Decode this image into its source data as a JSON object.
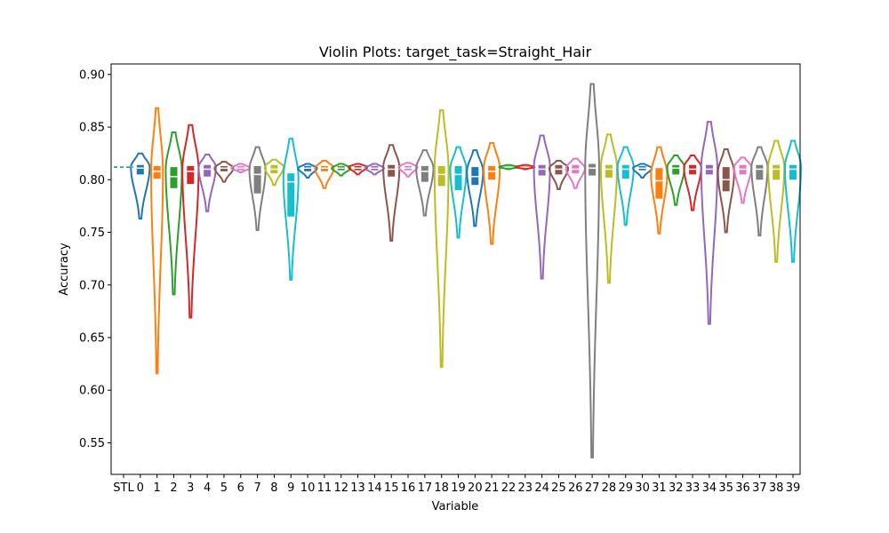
{
  "chart_data": {
    "type": "violin",
    "title": "Violin Plots: target_task=Straight_Hair",
    "xlabel": "Variable",
    "ylabel": "Accuracy",
    "ylim": [
      0.52,
      0.91
    ],
    "yticks": [
      "0.55",
      "0.60",
      "0.65",
      "0.70",
      "0.75",
      "0.80",
      "0.85",
      "0.90"
    ],
    "categories": [
      "STL",
      "0",
      "1",
      "2",
      "3",
      "4",
      "5",
      "6",
      "7",
      "8",
      "9",
      "10",
      "11",
      "12",
      "13",
      "14",
      "15",
      "16",
      "17",
      "18",
      "19",
      "20",
      "21",
      "22",
      "23",
      "24",
      "25",
      "26",
      "27",
      "28",
      "29",
      "30",
      "31",
      "32",
      "33",
      "34",
      "35",
      "36",
      "37",
      "38",
      "39"
    ],
    "stl_value": 0.812,
    "palette": [
      "#1f77b4",
      "#ff7f0e",
      "#2ca02c",
      "#d62728",
      "#9467bd",
      "#8c564b",
      "#e377c2",
      "#7f7f7f",
      "#bcbd22",
      "#17becf"
    ],
    "series": [
      {
        "name": "0",
        "min": 0.763,
        "max": 0.825,
        "q1": 0.805,
        "median": 0.811,
        "q3": 0.814,
        "mode": 0.812,
        "width": 0.35
      },
      {
        "name": "1",
        "min": 0.616,
        "max": 0.868,
        "q1": 0.801,
        "median": 0.808,
        "q3": 0.813,
        "mode": 0.808,
        "width": 0.22
      },
      {
        "name": "2",
        "min": 0.691,
        "max": 0.845,
        "q1": 0.792,
        "median": 0.803,
        "q3": 0.812,
        "mode": 0.81,
        "width": 0.3
      },
      {
        "name": "3",
        "min": 0.669,
        "max": 0.852,
        "q1": 0.796,
        "median": 0.808,
        "q3": 0.813,
        "mode": 0.81,
        "width": 0.3
      },
      {
        "name": "4",
        "min": 0.77,
        "max": 0.824,
        "q1": 0.803,
        "median": 0.81,
        "q3": 0.814,
        "mode": 0.812,
        "width": 0.32
      },
      {
        "name": "5",
        "min": 0.798,
        "max": 0.817,
        "q1": 0.808,
        "median": 0.811,
        "q3": 0.813,
        "mode": 0.811,
        "width": 0.35
      },
      {
        "name": "6",
        "min": 0.807,
        "max": 0.815,
        "q1": 0.809,
        "median": 0.811,
        "q3": 0.813,
        "mode": 0.811,
        "width": 0.35
      },
      {
        "name": "7",
        "min": 0.752,
        "max": 0.831,
        "q1": 0.787,
        "median": 0.805,
        "q3": 0.813,
        "mode": 0.81,
        "width": 0.3
      },
      {
        "name": "8",
        "min": 0.795,
        "max": 0.819,
        "q1": 0.806,
        "median": 0.81,
        "q3": 0.814,
        "mode": 0.812,
        "width": 0.35
      },
      {
        "name": "9",
        "min": 0.705,
        "max": 0.839,
        "q1": 0.765,
        "median": 0.798,
        "q3": 0.806,
        "mode": 0.802,
        "width": 0.28
      },
      {
        "name": "10",
        "min": 0.802,
        "max": 0.815,
        "q1": 0.808,
        "median": 0.811,
        "q3": 0.813,
        "mode": 0.811,
        "width": 0.35
      },
      {
        "name": "11",
        "min": 0.792,
        "max": 0.818,
        "q1": 0.808,
        "median": 0.811,
        "q3": 0.813,
        "mode": 0.811,
        "width": 0.35
      },
      {
        "name": "12",
        "min": 0.804,
        "max": 0.815,
        "q1": 0.809,
        "median": 0.811,
        "q3": 0.813,
        "mode": 0.811,
        "width": 0.35
      },
      {
        "name": "13",
        "min": 0.805,
        "max": 0.815,
        "q1": 0.809,
        "median": 0.811,
        "q3": 0.813,
        "mode": 0.812,
        "width": 0.35
      },
      {
        "name": "14",
        "min": 0.805,
        "max": 0.815,
        "q1": 0.809,
        "median": 0.811,
        "q3": 0.813,
        "mode": 0.811,
        "width": 0.35
      },
      {
        "name": "15",
        "min": 0.742,
        "max": 0.833,
        "q1": 0.803,
        "median": 0.81,
        "q3": 0.814,
        "mode": 0.812,
        "width": 0.3
      },
      {
        "name": "16",
        "min": 0.803,
        "max": 0.816,
        "q1": 0.809,
        "median": 0.811,
        "q3": 0.813,
        "mode": 0.812,
        "width": 0.35
      },
      {
        "name": "17",
        "min": 0.766,
        "max": 0.828,
        "q1": 0.798,
        "median": 0.808,
        "q3": 0.813,
        "mode": 0.811,
        "width": 0.32
      },
      {
        "name": "18",
        "min": 0.622,
        "max": 0.866,
        "q1": 0.794,
        "median": 0.805,
        "q3": 0.813,
        "mode": 0.81,
        "width": 0.26
      },
      {
        "name": "19",
        "min": 0.745,
        "max": 0.831,
        "q1": 0.79,
        "median": 0.805,
        "q3": 0.813,
        "mode": 0.81,
        "width": 0.3
      },
      {
        "name": "20",
        "min": 0.756,
        "max": 0.828,
        "q1": 0.795,
        "median": 0.803,
        "q3": 0.812,
        "mode": 0.808,
        "width": 0.3
      },
      {
        "name": "21",
        "min": 0.739,
        "max": 0.835,
        "q1": 0.8,
        "median": 0.808,
        "q3": 0.813,
        "mode": 0.811,
        "width": 0.3
      },
      {
        "name": "22",
        "min": 0.81,
        "max": 0.814,
        "q1": 0.811,
        "median": 0.812,
        "q3": 0.813,
        "mode": 0.812,
        "width": 0.35
      },
      {
        "name": "23",
        "min": 0.81,
        "max": 0.814,
        "q1": 0.811,
        "median": 0.812,
        "q3": 0.813,
        "mode": 0.812,
        "width": 0.35
      },
      {
        "name": "24",
        "min": 0.706,
        "max": 0.842,
        "q1": 0.804,
        "median": 0.81,
        "q3": 0.814,
        "mode": 0.812,
        "width": 0.3
      },
      {
        "name": "25",
        "min": 0.791,
        "max": 0.818,
        "q1": 0.805,
        "median": 0.81,
        "q3": 0.814,
        "mode": 0.811,
        "width": 0.35
      },
      {
        "name": "26",
        "min": 0.792,
        "max": 0.82,
        "q1": 0.806,
        "median": 0.81,
        "q3": 0.814,
        "mode": 0.811,
        "width": 0.35
      },
      {
        "name": "27",
        "min": 0.536,
        "max": 0.891,
        "q1": 0.804,
        "median": 0.811,
        "q3": 0.815,
        "mode": 0.812,
        "width": 0.26
      },
      {
        "name": "28",
        "min": 0.702,
        "max": 0.843,
        "q1": 0.802,
        "median": 0.81,
        "q3": 0.814,
        "mode": 0.812,
        "width": 0.3
      },
      {
        "name": "29",
        "min": 0.757,
        "max": 0.831,
        "q1": 0.801,
        "median": 0.81,
        "q3": 0.814,
        "mode": 0.812,
        "width": 0.3
      },
      {
        "name": "30",
        "min": 0.802,
        "max": 0.815,
        "q1": 0.809,
        "median": 0.811,
        "q3": 0.813,
        "mode": 0.811,
        "width": 0.35
      },
      {
        "name": "31",
        "min": 0.749,
        "max": 0.831,
        "q1": 0.782,
        "median": 0.799,
        "q3": 0.811,
        "mode": 0.805,
        "width": 0.3
      },
      {
        "name": "32",
        "min": 0.776,
        "max": 0.823,
        "q1": 0.805,
        "median": 0.811,
        "q3": 0.814,
        "mode": 0.812,
        "width": 0.32
      },
      {
        "name": "33",
        "min": 0.771,
        "max": 0.823,
        "q1": 0.805,
        "median": 0.81,
        "q3": 0.814,
        "mode": 0.812,
        "width": 0.32
      },
      {
        "name": "34",
        "min": 0.663,
        "max": 0.855,
        "q1": 0.805,
        "median": 0.81,
        "q3": 0.814,
        "mode": 0.812,
        "width": 0.3
      },
      {
        "name": "35",
        "min": 0.75,
        "max": 0.829,
        "q1": 0.789,
        "median": 0.8,
        "q3": 0.812,
        "mode": 0.807,
        "width": 0.3
      },
      {
        "name": "36",
        "min": 0.778,
        "max": 0.821,
        "q1": 0.805,
        "median": 0.81,
        "q3": 0.814,
        "mode": 0.812,
        "width": 0.32
      },
      {
        "name": "37",
        "min": 0.747,
        "max": 0.831,
        "q1": 0.8,
        "median": 0.81,
        "q3": 0.814,
        "mode": 0.812,
        "width": 0.3
      },
      {
        "name": "38",
        "min": 0.722,
        "max": 0.837,
        "q1": 0.8,
        "median": 0.81,
        "q3": 0.814,
        "mode": 0.812,
        "width": 0.3
      },
      {
        "name": "39",
        "min": 0.722,
        "max": 0.837,
        "q1": 0.8,
        "median": 0.81,
        "q3": 0.814,
        "mode": 0.812,
        "width": 0.3
      }
    ]
  }
}
